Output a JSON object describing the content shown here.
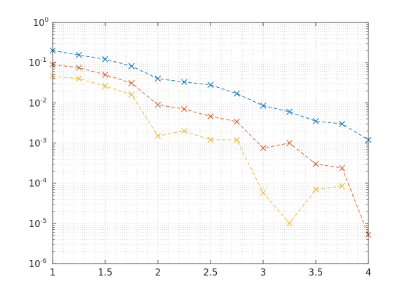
{
  "chart_data": {
    "type": "line",
    "title": "",
    "xlabel": "",
    "ylabel": "",
    "x": [
      1,
      1.25,
      1.5,
      1.75,
      2,
      2.25,
      2.5,
      2.75,
      3,
      3.25,
      3.5,
      3.75,
      4
    ],
    "xlim": [
      1,
      4
    ],
    "ylim": [
      1e-06,
      1
    ],
    "yscale": "log",
    "grid": true,
    "minor_grid": true,
    "x_ticks": [
      {
        "value": 1,
        "label": "1"
      },
      {
        "value": 1.5,
        "label": "1.5"
      },
      {
        "value": 2,
        "label": "2"
      },
      {
        "value": 2.5,
        "label": "2.5"
      },
      {
        "value": 3,
        "label": "3"
      },
      {
        "value": 3.5,
        "label": "3.5"
      },
      {
        "value": 4,
        "label": "4"
      }
    ],
    "y_ticks": [
      {
        "value": 1,
        "base": "10",
        "exp": "0"
      },
      {
        "value": 0.1,
        "base": "10",
        "exp": "-1"
      },
      {
        "value": 0.01,
        "base": "10",
        "exp": "-2"
      },
      {
        "value": 0.001,
        "base": "10",
        "exp": "-3"
      },
      {
        "value": 0.0001,
        "base": "10",
        "exp": "-4"
      },
      {
        "value": 1e-05,
        "base": "10",
        "exp": "-5"
      },
      {
        "value": 1e-06,
        "base": "10",
        "exp": "-6"
      }
    ],
    "series": [
      {
        "color": "#0072BD",
        "line_style": "dashed",
        "marker": "x",
        "values": [
          0.2,
          0.155,
          0.122,
          0.082,
          0.04,
          0.033,
          0.028,
          0.017,
          0.0085,
          0.006,
          0.0035,
          0.003,
          0.0012
        ]
      },
      {
        "color": "#D95319",
        "line_style": "dashed",
        "marker": "x",
        "values": [
          0.09,
          0.075,
          0.05,
          0.031,
          0.009,
          0.007,
          0.0046,
          0.0034,
          0.00075,
          0.001,
          0.0003,
          0.00024,
          5.2e-06
        ]
      },
      {
        "color": "#EDB120",
        "line_style": "dashed",
        "marker": "x",
        "values": [
          0.046,
          0.04,
          0.026,
          0.016,
          0.0015,
          0.002,
          0.0012,
          0.0012,
          5.8e-05,
          1e-05,
          7e-05,
          8.5e-05,
          null
        ]
      }
    ]
  }
}
